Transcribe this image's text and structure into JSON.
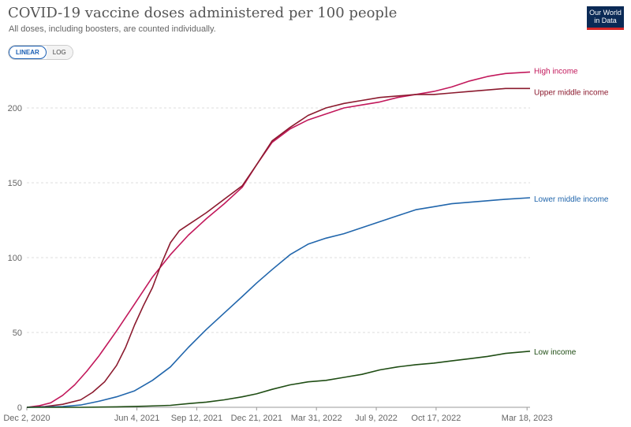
{
  "header": {
    "title": "COVID-19 vaccine doses administered per 100 people",
    "subtitle": "All doses, including boosters, are counted individually.",
    "logo_line1": "Our World",
    "logo_line2": "in Data"
  },
  "controls": {
    "linear_label": "LINEAR",
    "log_label": "LOG",
    "active": "LINEAR"
  },
  "chart_data": {
    "type": "line",
    "title": "COVID-19 vaccine doses administered per 100 people",
    "subtitle": "All doses, including boosters, are counted individually.",
    "x_unit": "days since 2020-12-02",
    "x_range": [
      0,
      841
    ],
    "ylim": [
      0,
      230
    ],
    "y_ticks": [
      0,
      50,
      100,
      150,
      200
    ],
    "x_ticks": [
      {
        "day": 0,
        "label": "Dec 2, 2020"
      },
      {
        "day": 184,
        "label": "Jun 4, 2021"
      },
      {
        "day": 284,
        "label": "Sep 12, 2021"
      },
      {
        "day": 384,
        "label": "Dec 21, 2021"
      },
      {
        "day": 484,
        "label": "Mar 31, 2022"
      },
      {
        "day": 584,
        "label": "Jul 9, 2022"
      },
      {
        "day": 684,
        "label": "Oct 17, 2022"
      },
      {
        "day": 836,
        "label": "Mar 18, 2023"
      }
    ],
    "grid": true,
    "legend": "end-of-line labels",
    "series": [
      {
        "name": "High income",
        "color": "#c2185b",
        "x": [
          0,
          20,
          40,
          60,
          80,
          100,
          120,
          150,
          180,
          210,
          240,
          270,
          300,
          330,
          360,
          384,
          410,
          440,
          470,
          500,
          530,
          560,
          590,
          620,
          650,
          680,
          710,
          740,
          770,
          800,
          841
        ],
        "y": [
          0,
          1,
          3,
          8,
          15,
          24,
          34,
          51,
          69,
          87,
          102,
          115,
          126,
          136,
          147,
          162,
          177,
          186,
          192,
          196,
          200,
          202,
          204,
          207,
          209,
          211,
          214,
          218,
          221,
          223,
          224
        ]
      },
      {
        "name": "Upper middle income",
        "color": "#8b1a2e",
        "x": [
          0,
          30,
          60,
          90,
          110,
          130,
          150,
          165,
          180,
          195,
          210,
          225,
          240,
          255,
          270,
          300,
          330,
          360,
          384,
          410,
          440,
          470,
          500,
          530,
          560,
          590,
          620,
          650,
          680,
          710,
          740,
          770,
          800,
          841
        ],
        "y": [
          0,
          0.5,
          2,
          5,
          10,
          17,
          28,
          40,
          55,
          68,
          80,
          96,
          110,
          118,
          122,
          130,
          139,
          148,
          162,
          178,
          187,
          195,
          200,
          203,
          205,
          207,
          208,
          209,
          209,
          210,
          211,
          212,
          213,
          213
        ]
      },
      {
        "name": "Lower middle income",
        "color": "#2166ac",
        "x": [
          0,
          60,
          90,
          120,
          150,
          180,
          210,
          240,
          270,
          300,
          330,
          360,
          384,
          410,
          440,
          470,
          500,
          530,
          560,
          590,
          620,
          650,
          680,
          710,
          740,
          770,
          800,
          841
        ],
        "y": [
          0,
          0.5,
          1.5,
          4,
          7,
          11,
          18,
          27,
          40,
          52,
          63,
          74,
          83,
          92,
          102,
          109,
          113,
          116,
          120,
          124,
          128,
          132,
          134,
          136,
          137,
          138,
          139,
          140
        ]
      },
      {
        "name": "Low income",
        "color": "#1f4d14",
        "x": [
          0,
          90,
          150,
          200,
          240,
          270,
          300,
          330,
          360,
          384,
          410,
          440,
          470,
          500,
          530,
          560,
          590,
          620,
          650,
          680,
          710,
          740,
          770,
          800,
          841
        ],
        "y": [
          0,
          0,
          0.3,
          0.8,
          1.3,
          2.5,
          3.5,
          5,
          7,
          9,
          12,
          15,
          17,
          18,
          20,
          22,
          25,
          27,
          28.5,
          29.5,
          31,
          32.5,
          34,
          36,
          37.5
        ]
      }
    ]
  }
}
